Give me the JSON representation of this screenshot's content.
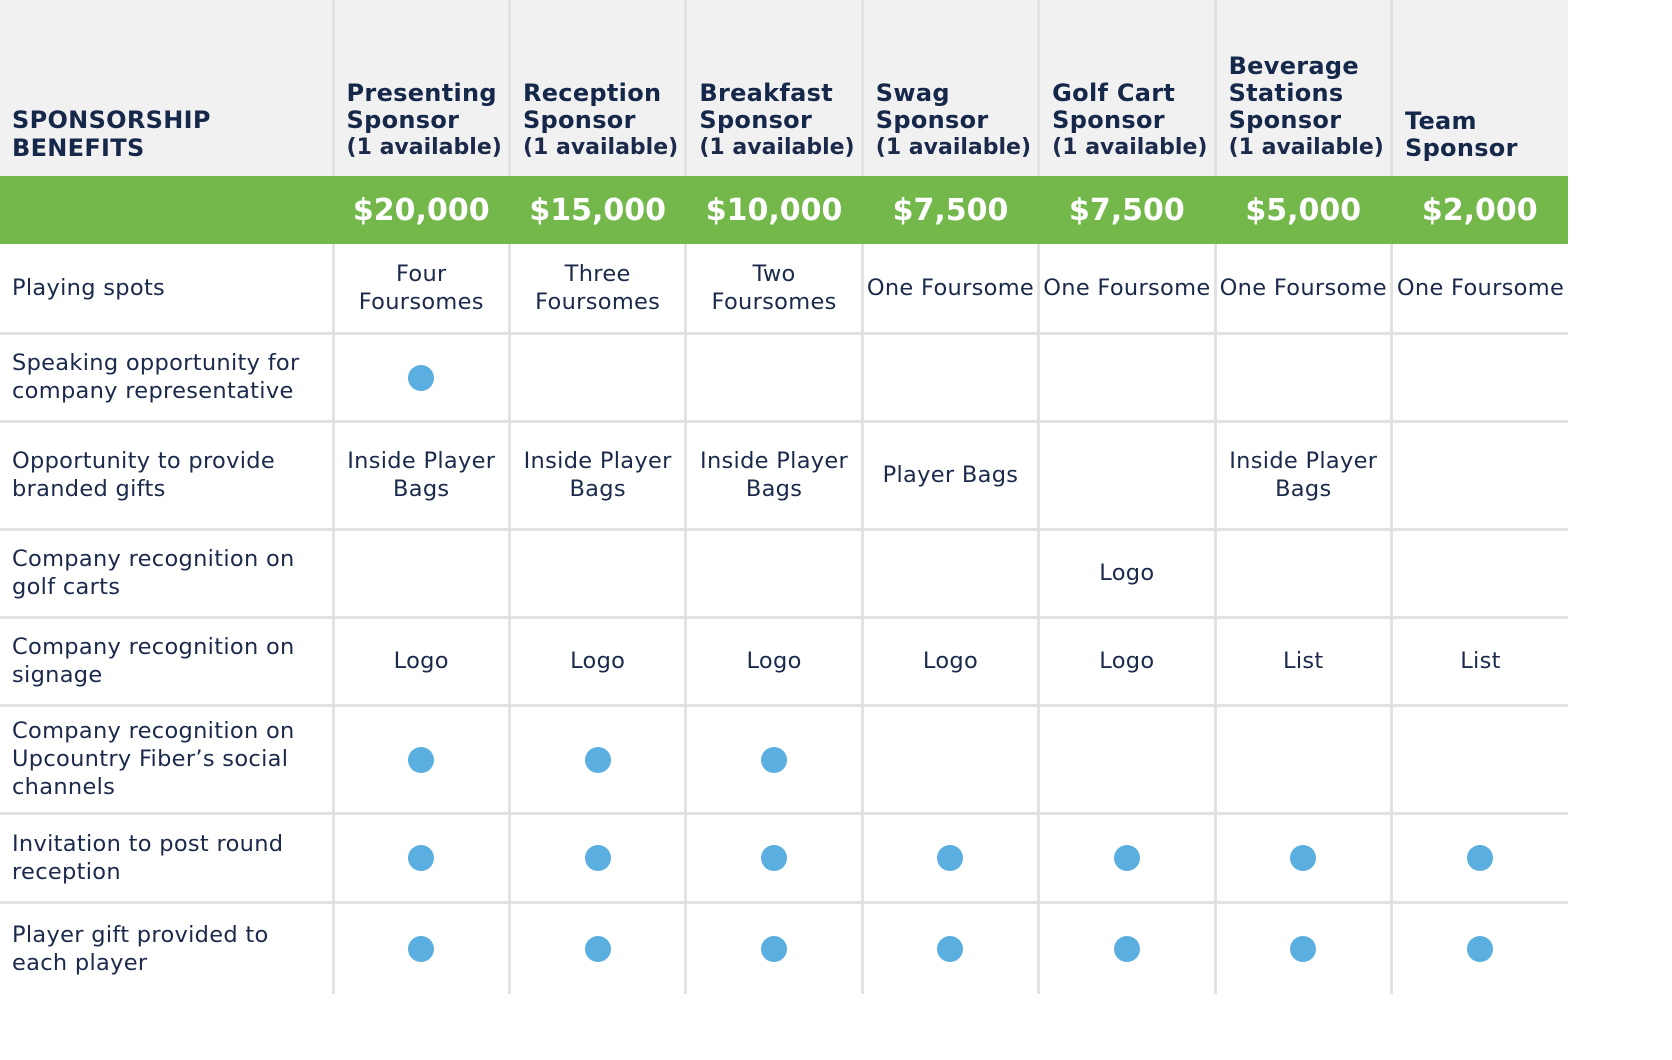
{
  "header": {
    "benefits_title": "SPONSORSHIP BENEFITS"
  },
  "tiers": [
    {
      "name": "Presenting Sponsor",
      "availability": "(1 available)",
      "price": "$20,000"
    },
    {
      "name": "Reception Sponsor",
      "availability": "(1 available)",
      "price": "$15,000"
    },
    {
      "name": "Breakfast Sponsor",
      "availability": "(1 available)",
      "price": "$10,000"
    },
    {
      "name": "Swag Sponsor",
      "availability": "(1 available)",
      "price": "$7,500"
    },
    {
      "name": "Golf Cart Sponsor",
      "availability": "(1 available)",
      "price": "$7,500"
    },
    {
      "name": "Beverage Stations Sponsor",
      "availability": "(1 available)",
      "price": "$5,000"
    },
    {
      "name": "Team Sponsor",
      "availability": "",
      "price": "$2,000"
    }
  ],
  "benefits": [
    {
      "label": "Playing spots",
      "values": [
        "Four Foursomes",
        "Three Foursomes",
        "Two Foursomes",
        "One Foursome",
        "One Foursome",
        "One Foursome",
        "One Foursome"
      ]
    },
    {
      "label": "Speaking opportunity for company representative",
      "values": [
        "dot",
        "",
        "",
        "",
        "",
        "",
        ""
      ]
    },
    {
      "label": "Opportunity to provide branded gifts",
      "values": [
        "Inside Player Bags",
        "Inside Player Bags",
        "Inside Player Bags",
        "Player Bags",
        "",
        "Inside Player Bags",
        ""
      ]
    },
    {
      "label": "Company recognition on golf carts",
      "values": [
        "",
        "",
        "",
        "",
        "Logo",
        "",
        ""
      ]
    },
    {
      "label": "Company recognition on signage",
      "values": [
        "Logo",
        "Logo",
        "Logo",
        "Logo",
        "Logo",
        "List",
        "List"
      ]
    },
    {
      "label": "Company recognition on Upcountry Fiber’s social channels",
      "values": [
        "dot",
        "dot",
        "dot",
        "",
        "",
        "",
        ""
      ]
    },
    {
      "label": "Invitation to post round reception",
      "values": [
        "dot",
        "dot",
        "dot",
        "dot",
        "dot",
        "dot",
        "dot"
      ]
    },
    {
      "label": "Player gift provided to each player",
      "values": [
        "dot",
        "dot",
        "dot",
        "dot",
        "dot",
        "dot",
        "dot"
      ]
    }
  ],
  "colors": {
    "price_band": "#74b84b",
    "included_dot": "#5aaee0",
    "header_bg": "#f1f1f1"
  }
}
